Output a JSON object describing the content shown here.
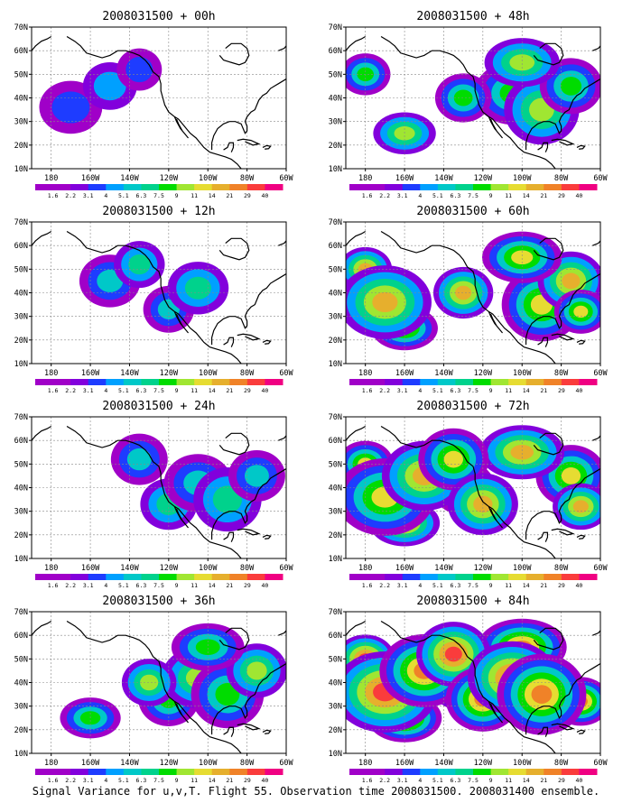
{
  "caption": "Signal Variance for u,v,T. Flight 55. Observation time 2008031500. 2008031400 ensemble.",
  "colorbar": {
    "labels": [
      "1.6",
      "2.2",
      "3.1",
      "4",
      "5.1",
      "6.3",
      "7.5",
      "9",
      "11",
      "14",
      "21",
      "29",
      "40"
    ],
    "colors": [
      "#a000c8",
      "#8200dc",
      "#1e3cff",
      "#00a0ff",
      "#00c8c8",
      "#00d28c",
      "#00dc00",
      "#a0e632",
      "#e6dc32",
      "#e6af2d",
      "#f08228",
      "#fa3c3c",
      "#f00082"
    ]
  },
  "axes": {
    "x_ticks": [
      "180",
      "160W",
      "140W",
      "120W",
      "100W",
      "80W",
      "60W"
    ],
    "y_ticks": [
      "10N",
      "20N",
      "30N",
      "40N",
      "50N",
      "60N",
      "70N"
    ],
    "lon_range": [
      170,
      300
    ],
    "lat_range": [
      10,
      70
    ]
  },
  "panels": [
    {
      "id": "p00",
      "title": "2008031500 + 00h",
      "col": 0,
      "row": 0,
      "level": 0.15
    },
    {
      "id": "p12",
      "title": "2008031500 + 12h",
      "col": 0,
      "row": 1,
      "level": 0.3
    },
    {
      "id": "p24",
      "title": "2008031500 + 24h",
      "col": 0,
      "row": 2,
      "level": 0.45
    },
    {
      "id": "p36",
      "title": "2008031500 + 36h",
      "col": 0,
      "row": 3,
      "level": 0.55
    },
    {
      "id": "p48",
      "title": "2008031500 + 48h",
      "col": 1,
      "row": 0,
      "level": 0.6
    },
    {
      "id": "p60",
      "title": "2008031500 + 60h",
      "col": 1,
      "row": 1,
      "level": 0.7
    },
    {
      "id": "p72",
      "title": "2008031500 + 72h",
      "col": 1,
      "row": 2,
      "level": 0.8
    },
    {
      "id": "p84",
      "title": "2008031500 + 84h",
      "col": 1,
      "row": 3,
      "level": 0.9
    }
  ]
}
